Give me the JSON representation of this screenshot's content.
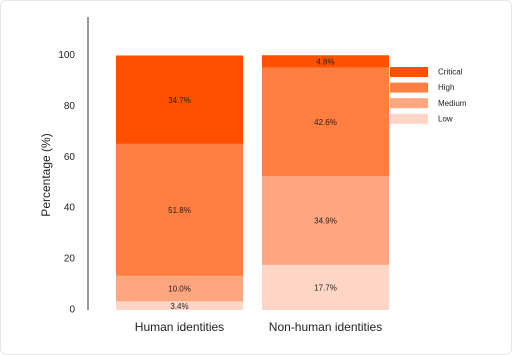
{
  "chart_data": {
    "type": "stacked_bar",
    "y_label": "Percentage (%)",
    "categories": [
      "Human identities",
      "Non-human identities"
    ],
    "series": [
      {
        "name": "Low",
        "color": "#ffd6c5",
        "values": [
          3.4,
          17.7
        ],
        "value_labels": [
          "3.4%",
          "17.7%"
        ]
      },
      {
        "name": "Medium",
        "color": "#ffa57f",
        "values": [
          10.0,
          34.9
        ],
        "value_labels": [
          "10.0%",
          "34.9%"
        ]
      },
      {
        "name": "High",
        "color": "#ff7e40",
        "values": [
          51.8,
          42.6
        ],
        "value_labels": [
          "51.8%",
          "42.6%"
        ]
      },
      {
        "name": "Critical",
        "color": "#ff5000",
        "values": [
          34.7,
          4.8
        ],
        "value_labels": [
          "34.7%",
          "4.8%"
        ]
      }
    ],
    "ylim": [
      0,
      115
    ],
    "yticks": [
      0,
      20,
      40,
      60,
      80,
      100
    ],
    "grid": false,
    "legend": "right"
  }
}
